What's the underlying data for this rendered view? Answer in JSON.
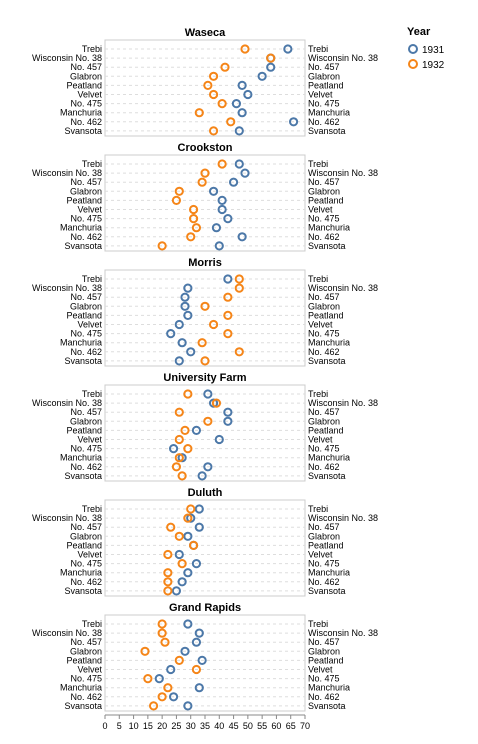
{
  "chart_data": {
    "type": "scatter",
    "title": "",
    "xlabel": "",
    "ylabel": "",
    "xlim": [
      0,
      70
    ],
    "x_ticks": [
      "0",
      "5",
      "10",
      "15",
      "20",
      "25",
      "30",
      "35",
      "40",
      "45",
      "50",
      "55",
      "60",
      "65",
      "70"
    ],
    "grid": true,
    "legend": {
      "title": "Year",
      "position": "top-right",
      "entries": [
        {
          "label": "1931",
          "color": "#4c78a8"
        },
        {
          "label": "1932",
          "color": "#f58518"
        }
      ]
    },
    "varieties": [
      "Trebi",
      "Wisconsin No. 38",
      "No. 457",
      "Glabron",
      "Peatland",
      "Velvet",
      "No. 475",
      "Manchuria",
      "No. 462",
      "Svansota"
    ],
    "facets": [
      {
        "site": "Waseca",
        "y1931": [
          64,
          58,
          58,
          55,
          48,
          50,
          46,
          48,
          66,
          47
        ],
        "y1932": [
          49,
          58,
          42,
          38,
          36,
          38,
          41,
          33,
          44,
          38
        ]
      },
      {
        "site": "Crookston",
        "y1931": [
          47,
          49,
          45,
          38,
          41,
          41,
          43,
          39,
          48,
          40
        ],
        "y1932": [
          41,
          35,
          34,
          26,
          25,
          31,
          31,
          32,
          30,
          20
        ]
      },
      {
        "site": "Morris",
        "y1931": [
          43,
          29,
          28,
          28,
          29,
          26,
          23,
          27,
          30,
          26
        ],
        "y1932": [
          47,
          47,
          43,
          35,
          43,
          38,
          43,
          34,
          47,
          35
        ]
      },
      {
        "site": "University Farm",
        "y1931": [
          36,
          38,
          43,
          43,
          32,
          40,
          24,
          27,
          36,
          34
        ],
        "y1932": [
          29,
          39,
          26,
          36,
          28,
          26,
          29,
          26,
          25,
          27
        ]
      },
      {
        "site": "Duluth",
        "y1931": [
          33,
          30,
          33,
          29,
          31,
          26,
          32,
          29,
          27,
          25
        ],
        "y1932": [
          30,
          29,
          23,
          26,
          31,
          22,
          27,
          22,
          22,
          22
        ]
      },
      {
        "site": "Grand Rapids",
        "y1931": [
          29,
          33,
          32,
          28,
          34,
          23,
          19,
          33,
          24,
          29
        ],
        "y1932": [
          20,
          20,
          21,
          14,
          26,
          32,
          15,
          22,
          20,
          17
        ]
      }
    ]
  }
}
